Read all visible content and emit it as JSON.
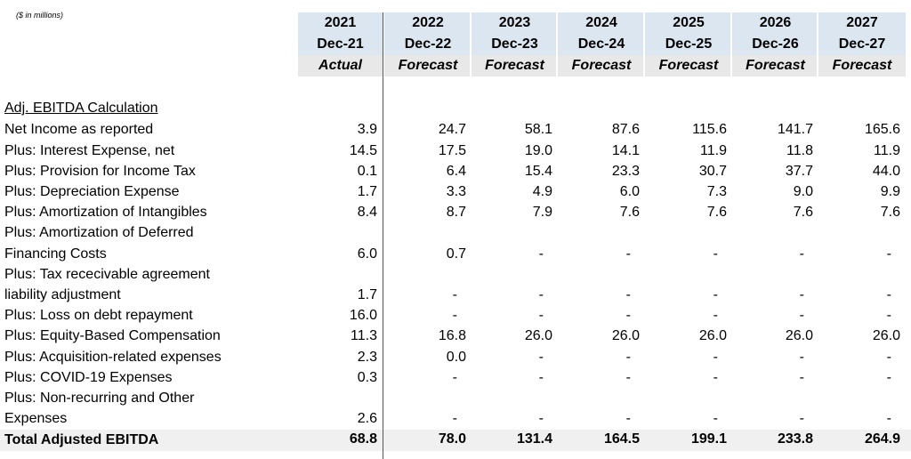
{
  "note": "($ in millions)",
  "columns": [
    {
      "year": "2021",
      "period": "Dec-21",
      "basis": "Actual"
    },
    {
      "year": "2022",
      "period": "Dec-22",
      "basis": "Forecast"
    },
    {
      "year": "2023",
      "period": "Dec-23",
      "basis": "Forecast"
    },
    {
      "year": "2024",
      "period": "Dec-24",
      "basis": "Forecast"
    },
    {
      "year": "2025",
      "period": "Dec-25",
      "basis": "Forecast"
    },
    {
      "year": "2026",
      "period": "Dec-26",
      "basis": "Forecast"
    },
    {
      "year": "2027",
      "period": "Dec-27",
      "basis": "Forecast"
    }
  ],
  "section_title": "Adj. EBITDA Calculation",
  "rows": [
    {
      "label": [
        "Net Income as reported"
      ],
      "values": [
        "3.9",
        "24.7",
        "58.1",
        "87.6",
        "115.6",
        "141.7",
        "165.6"
      ]
    },
    {
      "label": [
        "Plus: Interest Expense, net"
      ],
      "values": [
        "14.5",
        "17.5",
        "19.0",
        "14.1",
        "11.9",
        "11.8",
        "11.9"
      ]
    },
    {
      "label": [
        "Plus: Provision for Income Tax"
      ],
      "values": [
        "0.1",
        "6.4",
        "15.4",
        "23.3",
        "30.7",
        "37.7",
        "44.0"
      ]
    },
    {
      "label": [
        "Plus: Depreciation Expense"
      ],
      "values": [
        "1.7",
        "3.3",
        "4.9",
        "6.0",
        "7.3",
        "9.0",
        "9.9"
      ]
    },
    {
      "label": [
        "Plus: Amortization of Intangibles"
      ],
      "values": [
        "8.4",
        "8.7",
        "7.9",
        "7.6",
        "7.6",
        "7.6",
        "7.6"
      ]
    },
    {
      "label": [
        "Plus: Amortization of Deferred",
        "Financing Costs"
      ],
      "values": [
        "6.0",
        "0.7",
        "-",
        "-",
        "-",
        "-",
        "-"
      ]
    },
    {
      "label": [
        "Plus: Tax rececivable agreement",
        "liability adjustment"
      ],
      "values": [
        "1.7",
        "-",
        "-",
        "-",
        "-",
        "-",
        "-"
      ]
    },
    {
      "label": [
        "Plus: Loss on debt repayment"
      ],
      "values": [
        "16.0",
        "-",
        "-",
        "-",
        "-",
        "-",
        "-"
      ]
    },
    {
      "label": [
        "Plus: Equity-Based Compensation"
      ],
      "values": [
        "11.3",
        "16.8",
        "26.0",
        "26.0",
        "26.0",
        "26.0",
        "26.0"
      ]
    },
    {
      "label": [
        "Plus: Acquisition-related expenses"
      ],
      "values": [
        "2.3",
        "0.0",
        "-",
        "-",
        "-",
        "-",
        "-"
      ]
    },
    {
      "label": [
        "Plus: COVID-19 Expenses"
      ],
      "values": [
        "0.3",
        "-",
        "-",
        "-",
        "-",
        "-",
        "-"
      ]
    },
    {
      "label": [
        "Plus: Non-recurring and Other",
        "Expenses"
      ],
      "values": [
        "2.6",
        "-",
        "-",
        "-",
        "-",
        "-",
        "-"
      ]
    }
  ],
  "total": {
    "label": "Total Adjusted EBITDA",
    "values": [
      "68.8",
      "78.0",
      "131.4",
      "164.5",
      "199.1",
      "233.8",
      "264.9"
    ]
  }
}
